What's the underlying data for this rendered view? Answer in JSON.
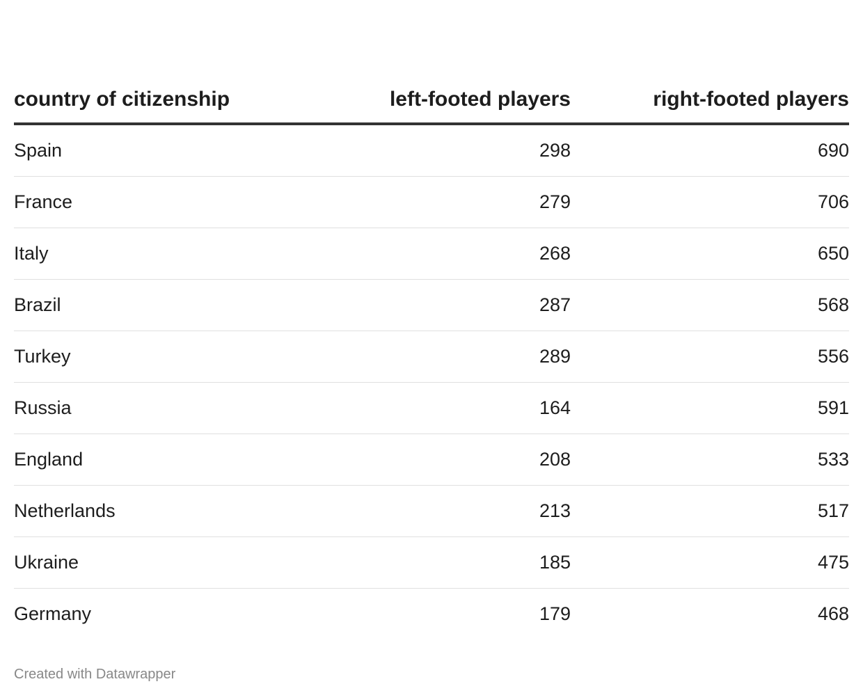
{
  "chart_data": {
    "type": "table",
    "columns": [
      "country of citizenship",
      "left-footed players",
      "right-footed players"
    ],
    "rows": [
      {
        "country": "Spain",
        "left": 298,
        "right": 690
      },
      {
        "country": "France",
        "left": 279,
        "right": 706
      },
      {
        "country": "Italy",
        "left": 268,
        "right": 650
      },
      {
        "country": "Brazil",
        "left": 287,
        "right": 568
      },
      {
        "country": "Turkey",
        "left": 289,
        "right": 556
      },
      {
        "country": "Russia",
        "left": 164,
        "right": 591
      },
      {
        "country": "England",
        "left": 208,
        "right": 533
      },
      {
        "country": "Netherlands",
        "left": 213,
        "right": 517
      },
      {
        "country": "Ukraine",
        "left": 185,
        "right": 475
      },
      {
        "country": "Germany",
        "left": 179,
        "right": 468
      }
    ]
  },
  "footer": {
    "credit": "Created with Datawrapper"
  }
}
